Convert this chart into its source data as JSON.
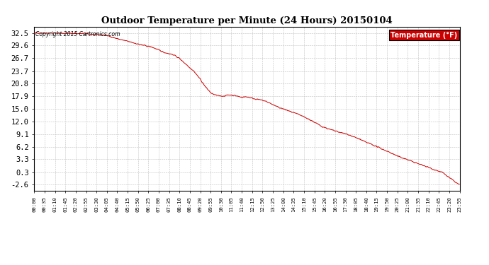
{
  "title": "Outdoor Temperature per Minute (24 Hours) 20150104",
  "copyright_text": "Copyright 2015 Cartronics.com",
  "legend_text": "Temperature (°F)",
  "legend_bg": "#cc0000",
  "legend_fg": "#ffffff",
  "line_color": "#cc0000",
  "background_color": "#ffffff",
  "grid_color": "#c0c0c0",
  "yticks": [
    -2.6,
    0.3,
    3.3,
    6.2,
    9.1,
    12.0,
    15.0,
    17.9,
    20.8,
    23.7,
    26.7,
    29.6,
    32.5
  ],
  "ylim": [
    -4.0,
    34.0
  ],
  "x_tick_labels": [
    "00:00",
    "00:35",
    "01:10",
    "01:45",
    "02:20",
    "02:55",
    "03:30",
    "04:05",
    "04:40",
    "05:15",
    "05:50",
    "06:25",
    "07:00",
    "07:35",
    "08:10",
    "08:45",
    "09:20",
    "09:55",
    "10:30",
    "11:05",
    "11:40",
    "12:15",
    "12:50",
    "13:25",
    "14:00",
    "14:35",
    "15:10",
    "15:45",
    "16:20",
    "16:55",
    "17:30",
    "18:05",
    "18:40",
    "19:15",
    "19:50",
    "20:25",
    "21:00",
    "21:35",
    "22:10",
    "22:45",
    "23:20",
    "23:55"
  ],
  "total_minutes": 1440,
  "seed": 42,
  "keypoints": [
    [
      0,
      32.5
    ],
    [
      60,
      32.5
    ],
    [
      120,
      32.4
    ],
    [
      180,
      32.3
    ],
    [
      240,
      32.0
    ],
    [
      280,
      31.2
    ],
    [
      320,
      30.5
    ],
    [
      360,
      29.8
    ],
    [
      400,
      29.2
    ],
    [
      440,
      28.0
    ],
    [
      470,
      27.5
    ],
    [
      490,
      26.7
    ],
    [
      510,
      25.5
    ],
    [
      540,
      23.7
    ],
    [
      560,
      22.0
    ],
    [
      580,
      20.0
    ],
    [
      600,
      18.5
    ],
    [
      620,
      18.0
    ],
    [
      640,
      17.9
    ],
    [
      660,
      18.1
    ],
    [
      680,
      17.9
    ],
    [
      700,
      17.6
    ],
    [
      720,
      17.8
    ],
    [
      740,
      17.5
    ],
    [
      760,
      17.2
    ],
    [
      780,
      16.8
    ],
    [
      800,
      16.2
    ],
    [
      820,
      15.5
    ],
    [
      840,
      15.0
    ],
    [
      860,
      14.5
    ],
    [
      900,
      13.5
    ],
    [
      940,
      12.2
    ],
    [
      970,
      11.0
    ],
    [
      1000,
      10.2
    ],
    [
      1020,
      9.8
    ],
    [
      1040,
      9.4
    ],
    [
      1060,
      9.1
    ],
    [
      1080,
      8.5
    ],
    [
      1100,
      8.0
    ],
    [
      1120,
      7.3
    ],
    [
      1140,
      6.8
    ],
    [
      1160,
      6.2
    ],
    [
      1180,
      5.6
    ],
    [
      1200,
      5.0
    ],
    [
      1230,
      4.0
    ],
    [
      1260,
      3.3
    ],
    [
      1290,
      2.5
    ],
    [
      1320,
      1.8
    ],
    [
      1350,
      1.0
    ],
    [
      1380,
      0.3
    ],
    [
      1410,
      -1.2
    ],
    [
      1430,
      -2.2
    ],
    [
      1440,
      -2.6
    ]
  ]
}
